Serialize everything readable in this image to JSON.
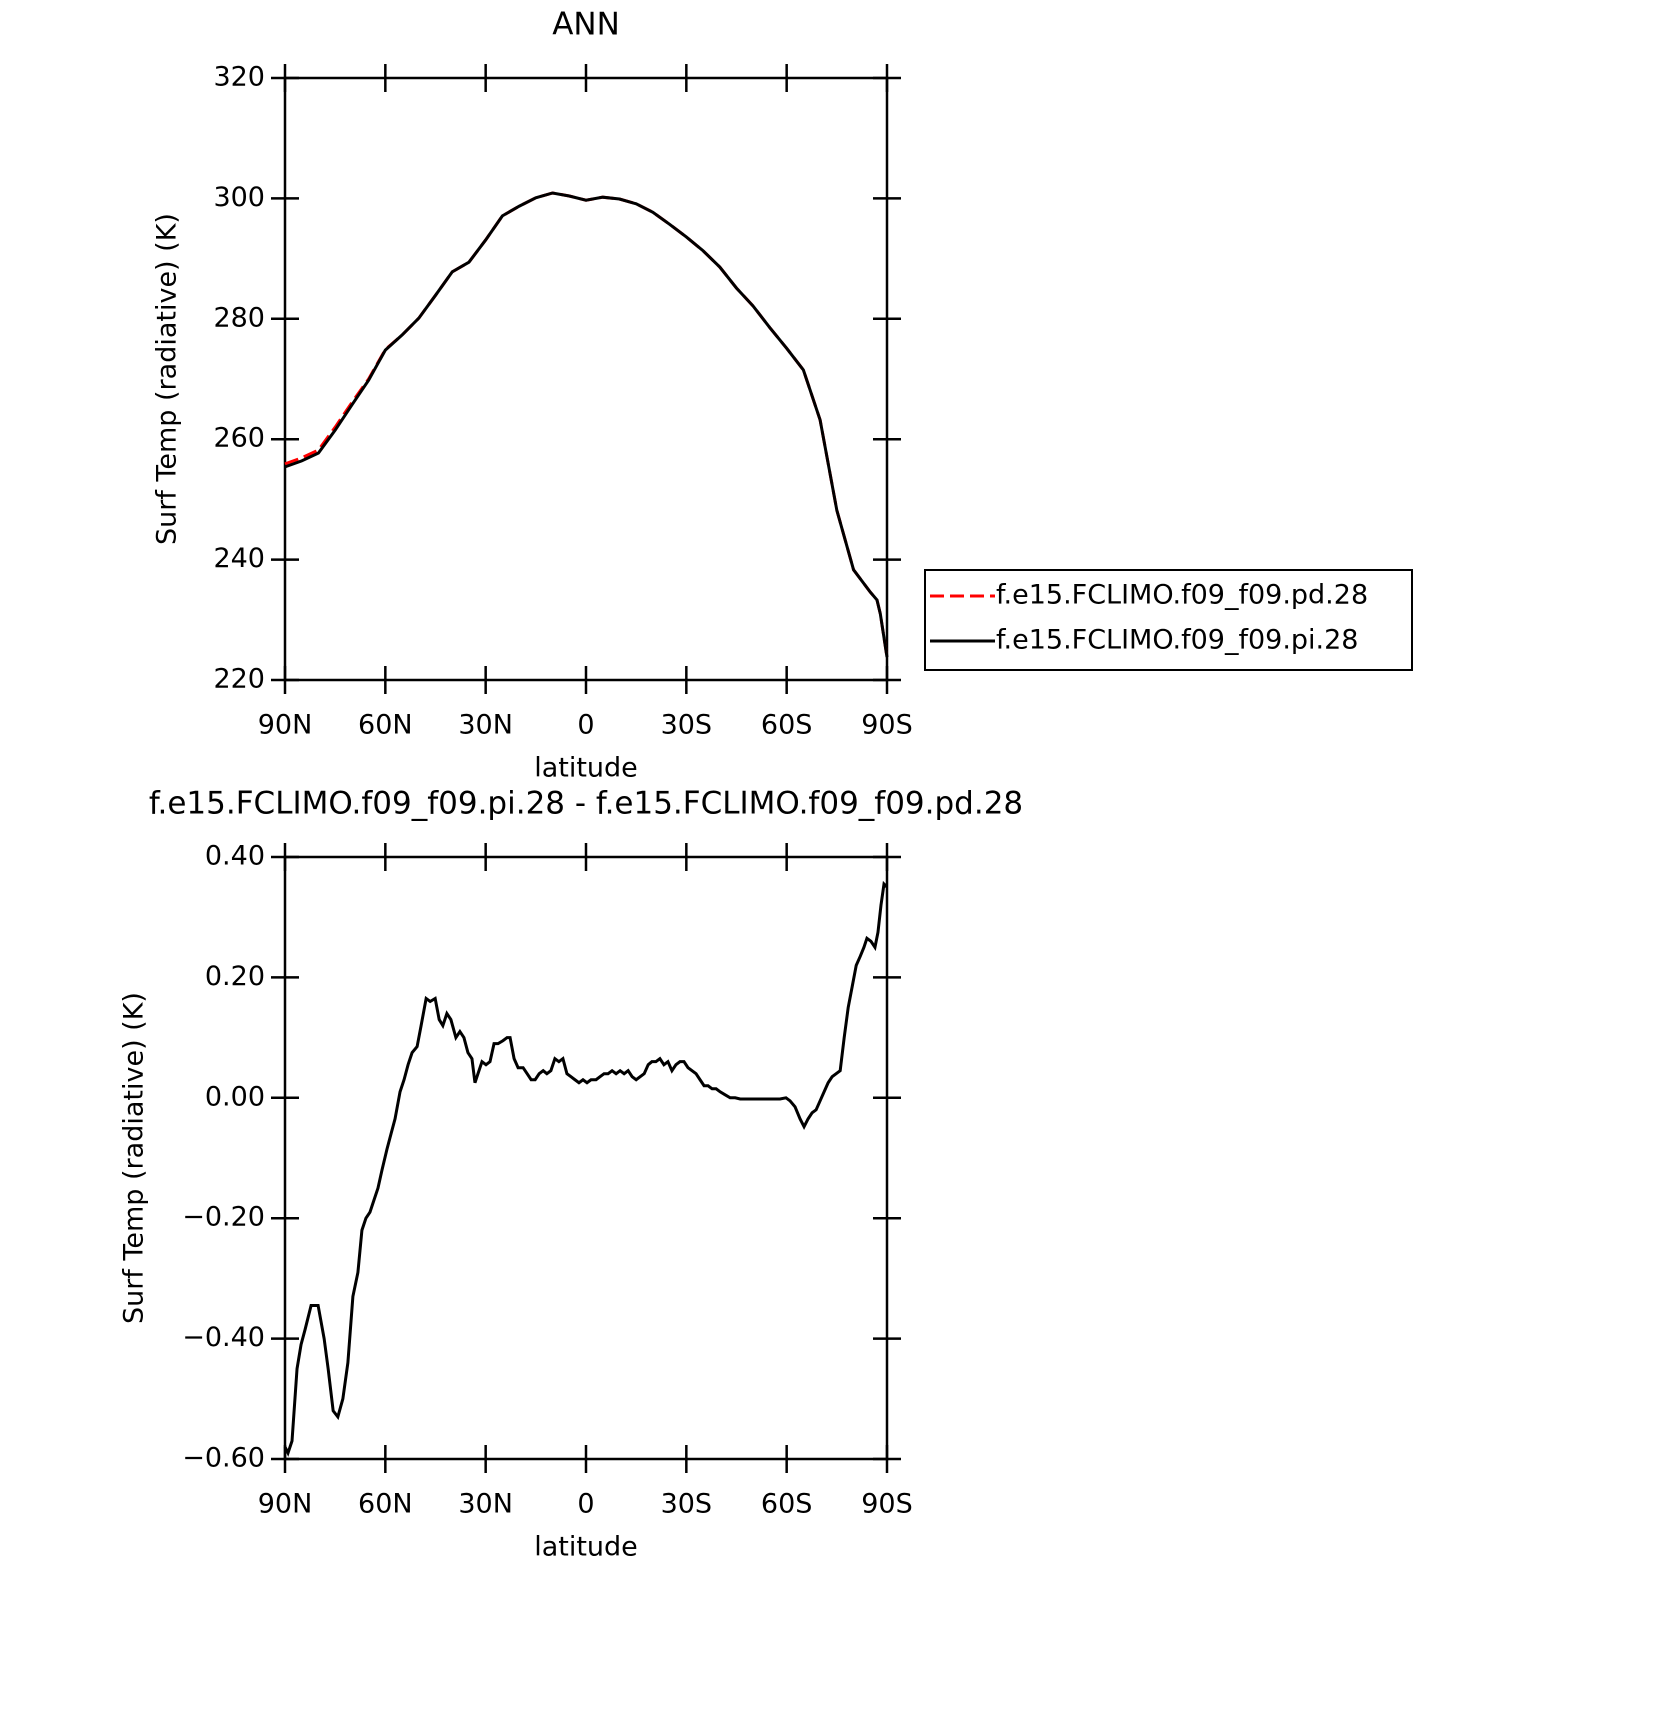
{
  "chart_data": [
    {
      "type": "line",
      "title": "ANN",
      "xlabel": "latitude",
      "ylabel": "Surf Temp (radiative) (K)",
      "x": [
        90,
        85,
        80,
        75,
        70,
        65,
        60,
        55,
        50,
        45,
        40,
        35,
        30,
        25,
        20,
        15,
        10,
        5,
        0,
        -5,
        -10,
        -15,
        -20,
        -25,
        -30,
        -35,
        -40,
        -45,
        -50,
        -55,
        -60,
        -65,
        -70,
        -75,
        -80,
        -85,
        -87,
        -88,
        -90
      ],
      "series": [
        {
          "name": "f.e15.FCLIMO.f09_f09.pd.28",
          "color": "#ff0000",
          "style": "dashed",
          "values": [
            255.9,
            256.9,
            258.2,
            262.0,
            266.1,
            270.0,
            274.9,
            277.3,
            280.1,
            283.9,
            287.8,
            289.4,
            293.1,
            297.1,
            298.7,
            300.1,
            300.9,
            300.4,
            299.7,
            300.2,
            299.9,
            299.1,
            297.7,
            295.7,
            293.6,
            291.3,
            288.6,
            285.1,
            282.1,
            278.5,
            275.1,
            271.5,
            263.2,
            248.2,
            238.3,
            234.6,
            233.3,
            231.0,
            223.8
          ]
        },
        {
          "name": "f.e15.FCLIMO.f09_f09.pi.28",
          "color": "#000000",
          "style": "solid",
          "values": [
            255.4,
            256.4,
            257.7,
            261.5,
            265.7,
            269.8,
            274.8,
            277.3,
            280.1,
            283.9,
            287.8,
            289.4,
            293.1,
            297.1,
            298.7,
            300.1,
            300.9,
            300.4,
            299.7,
            300.2,
            299.9,
            299.1,
            297.7,
            295.7,
            293.6,
            291.3,
            288.6,
            285.1,
            282.1,
            278.5,
            275.1,
            271.5,
            263.2,
            248.2,
            238.3,
            234.6,
            233.3,
            231.0,
            223.8
          ]
        }
      ],
      "xlim": [
        90,
        -90
      ],
      "xticks": [
        {
          "value": 90,
          "label": "90N"
        },
        {
          "value": 60,
          "label": "60N"
        },
        {
          "value": 30,
          "label": "30N"
        },
        0,
        {
          "value": -30,
          "label": "30S"
        },
        {
          "value": -60,
          "label": "60S"
        },
        {
          "value": -90,
          "label": "90S"
        }
      ],
      "ylim": [
        220,
        320
      ],
      "yticks": [
        220,
        240,
        260,
        280,
        300,
        320
      ],
      "legend": "outside-right"
    },
    {
      "type": "line",
      "title": "f.e15.FCLIMO.f09_f09.pi.28 - f.e15.FCLIMO.f09_f09.pd.28",
      "xlabel": "latitude",
      "ylabel": "Surf Temp (radiative) (K)",
      "x": [
        90,
        89.1,
        87.9,
        86.4,
        85.2,
        84,
        82.2,
        80.1,
        78.3,
        77.1,
        75.6,
        74.2,
        72.7,
        71.2,
        69.7,
        68.2,
        67,
        65.8,
        64.6,
        63.4,
        62.2,
        61,
        59.5,
        58.3,
        57.1,
        55.6,
        54.4,
        53.2,
        52,
        50.5,
        49.3,
        47.8,
        46.6,
        45.1,
        43.9,
        42.8,
        41.6,
        40.4,
        38.9,
        37.7,
        36.5,
        35.3,
        34.1,
        33.2,
        32,
        31.1,
        29.9,
        28.7,
        27.5,
        26.3,
        24.8,
        23.6,
        22.7,
        21.5,
        20.3,
        18.8,
        17.6,
        16.4,
        15.2,
        14,
        12.8,
        11.7,
        10.5,
        9.3,
        8.1,
        6.9,
        5.7,
        4.5,
        3.3,
        2.1,
        0.9,
        -0.3,
        -1.5,
        -3,
        -4.2,
        -5.4,
        -6.6,
        -7.8,
        -9,
        -10.2,
        -11.4,
        -12.6,
        -13.8,
        -15,
        -16.2,
        -17.4,
        -18.6,
        -19.7,
        -20.9,
        -22.1,
        -23.3,
        -24.5,
        -25.7,
        -26.9,
        -28.1,
        -29.3,
        -30.5,
        -31.7,
        -32.9,
        -34.1,
        -35.3,
        -36.5,
        -37.7,
        -38.9,
        -40.1,
        -41.6,
        -43.1,
        -44.6,
        -46.1,
        -49.1,
        -52,
        -55,
        -58,
        -59.8,
        -61,
        -62.5,
        -64,
        -65.2,
        -66.4,
        -67.6,
        -68.8,
        -70,
        -71.2,
        -72.4,
        -73.6,
        -74.8,
        -76,
        -77.2,
        -78.4,
        -79.6,
        -80.8,
        -82,
        -83.1,
        -84,
        -85.2,
        -86.4,
        -87.3,
        -88.2,
        -89.1,
        -90
      ],
      "series": [
        {
          "name": "f.e15.FCLIMO.f09_f09.pi.28 - f.e15.FCLIMO.f09_f09.pd.28",
          "color": "#000000",
          "style": "solid",
          "values": [
            -0.58,
            -0.59,
            -0.57,
            -0.45,
            -0.41,
            -0.385,
            -0.345,
            -0.345,
            -0.4,
            -0.45,
            -0.52,
            -0.53,
            -0.5,
            -0.44,
            -0.33,
            -0.29,
            -0.22,
            -0.2,
            -0.19,
            -0.17,
            -0.15,
            -0.12,
            -0.085,
            -0.06,
            -0.035,
            0.01,
            0.03,
            0.055,
            0.075,
            0.085,
            0.12,
            0.165,
            0.16,
            0.165,
            0.13,
            0.12,
            0.14,
            0.13,
            0.1,
            0.11,
            0.1,
            0.075,
            0.065,
            0.025,
            0.045,
            0.06,
            0.055,
            0.06,
            0.09,
            0.09,
            0.095,
            0.1,
            0.1,
            0.065,
            0.05,
            0.05,
            0.04,
            0.03,
            0.03,
            0.04,
            0.045,
            0.04,
            0.045,
            0.065,
            0.06,
            0.065,
            0.04,
            0.035,
            0.03,
            0.025,
            0.03,
            0.025,
            0.03,
            0.03,
            0.035,
            0.04,
            0.04,
            0.045,
            0.04,
            0.045,
            0.04,
            0.045,
            0.035,
            0.03,
            0.035,
            0.04,
            0.055,
            0.06,
            0.06,
            0.065,
            0.055,
            0.06,
            0.045,
            0.055,
            0.06,
            0.06,
            0.05,
            0.045,
            0.04,
            0.03,
            0.02,
            0.02,
            0.015,
            0.015,
            0.01,
            0.005,
            0,
            0,
            -0.002,
            -0.002,
            -0.002,
            -0.002,
            -0.002,
            0,
            -0.005,
            -0.015,
            -0.035,
            -0.048,
            -0.035,
            -0.025,
            -0.02,
            -0.005,
            0.01,
            0.025,
            0.035,
            0.04,
            0.045,
            0.1,
            0.15,
            0.185,
            0.22,
            0.235,
            0.25,
            0.265,
            0.26,
            0.25,
            0.275,
            0.32,
            0.355,
            0.35
          ]
        }
      ],
      "xlim": [
        90,
        -90
      ],
      "xticks": [
        {
          "value": 90,
          "label": "90N"
        },
        {
          "value": 60,
          "label": "60N"
        },
        {
          "value": 30,
          "label": "30N"
        },
        0,
        {
          "value": -30,
          "label": "30S"
        },
        {
          "value": -60,
          "label": "60S"
        },
        {
          "value": -90,
          "label": "90S"
        }
      ],
      "ylim": [
        -0.6,
        0.4
      ],
      "yticks": [
        {
          "value": -0.6,
          "label": "−0.60"
        },
        {
          "value": -0.4,
          "label": "−0.40"
        },
        {
          "value": -0.2,
          "label": "−0.20"
        },
        {
          "value": 0,
          "label": "0.00"
        },
        {
          "value": 0.2,
          "label": "0.20"
        },
        {
          "value": 0.4,
          "label": "0.40"
        }
      ]
    }
  ]
}
